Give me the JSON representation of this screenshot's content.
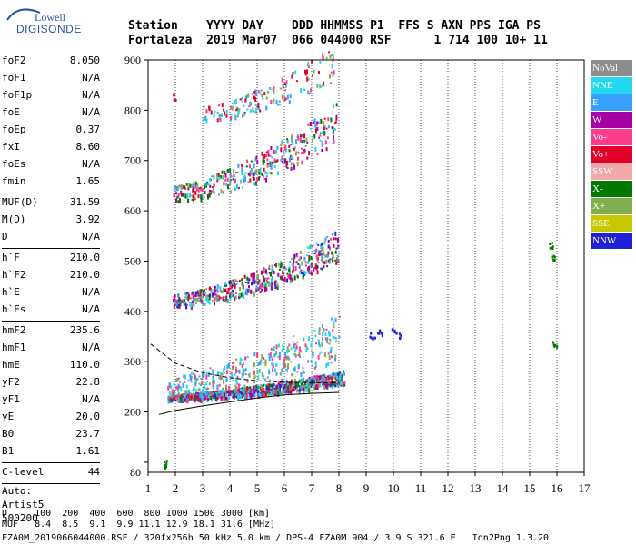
{
  "logo": {
    "line1": "Lowell",
    "line2": "DIGISONDE"
  },
  "header": {
    "row1": "Station    YYYY DAY    DDD HHMMSS P1  FFS S AXN PPS IGA PS",
    "row2": "Fortaleza  2019 Mar07  066 044000 RSF      1 714 100 10+ 11"
  },
  "params": {
    "group1": [
      {
        "k": "foF2",
        "v": "8.050"
      },
      {
        "k": "foF1",
        "v": "N/A"
      },
      {
        "k": "foF1p",
        "v": "N/A"
      },
      {
        "k": "foE",
        "v": "N/A"
      },
      {
        "k": "foEp",
        "v": "0.37"
      },
      {
        "k": "fxI",
        "v": "8.60"
      },
      {
        "k": "foEs",
        "v": "N/A"
      },
      {
        "k": "fmin",
        "v": "1.65"
      }
    ],
    "group2": [
      {
        "k": "MUF(D)",
        "v": "31.59"
      },
      {
        "k": "M(D)",
        "v": "3.92"
      },
      {
        "k": "D",
        "v": "N/A"
      }
    ],
    "group3": [
      {
        "k": "h`F",
        "v": "210.0"
      },
      {
        "k": "h`F2",
        "v": "210.0"
      },
      {
        "k": "h`E",
        "v": "N/A"
      },
      {
        "k": "h`Es",
        "v": "N/A"
      }
    ],
    "group4": [
      {
        "k": "hmF2",
        "v": "235.6"
      },
      {
        "k": "hmF1",
        "v": "N/A"
      },
      {
        "k": "hmE",
        "v": "110.0"
      },
      {
        "k": "yF2",
        "v": "22.8"
      },
      {
        "k": "yF1",
        "v": "N/A"
      },
      {
        "k": "yE",
        "v": "20.0"
      },
      {
        "k": "B0",
        "v": "23.7"
      },
      {
        "k": "B1",
        "v": "1.61"
      }
    ],
    "group5": [
      {
        "k": "C-level",
        "v": "44"
      }
    ],
    "auto": [
      "Auto:",
      "Artist5",
      "500200"
    ]
  },
  "legend": [
    {
      "label": "NoVal",
      "color": "#8c8c8c"
    },
    {
      "label": "NNE",
      "color": "#20d8f0"
    },
    {
      "label": "E",
      "color": "#3aa0ff"
    },
    {
      "label": "W",
      "color": "#a800a8"
    },
    {
      "label": "Vo-",
      "color": "#ff3c8c"
    },
    {
      "label": "Vo+",
      "color": "#e0002a"
    },
    {
      "label": "SSW",
      "color": "#f0a8a8"
    },
    {
      "label": "X-",
      "color": "#007800"
    },
    {
      "label": "X+",
      "color": "#7fb050"
    },
    {
      "label": "SSE",
      "color": "#c8c800"
    },
    {
      "label": "NNW",
      "color": "#2020d8"
    }
  ],
  "footer": {
    "d_row": "D     100  200  400  600  800 1000 1500 3000 [km]",
    "muf_row": "MUF   8.4  8.5  9.1  9.9 11.1 12.9 18.1 31.6 [MHz]",
    "file_row": "FZA0M_2019066044000.RSF / 320fx256h 50 kHz 5.0 km / DPS-4 FZA0M 904 / 3.9 S 321.6 E   Ion2Png 1.3.20"
  },
  "chart_data": {
    "type": "scatter",
    "title": "",
    "xlabel": "",
    "ylabel": "",
    "xlim": [
      1,
      17
    ],
    "ylim": [
      80,
      900
    ],
    "x_ticks": [
      1,
      2,
      3,
      4,
      5,
      6,
      7,
      8,
      9,
      10,
      11,
      12,
      13,
      14,
      15,
      16,
      17
    ],
    "y_ticks": [
      100,
      200,
      300,
      400,
      500,
      600,
      700,
      800,
      900
    ],
    "y_tick_labels": [
      "",
      "200",
      "300",
      "400",
      "500",
      "600",
      "700",
      "800",
      "900"
    ],
    "y_bottom_label": "80",
    "grid": "vertical dotted",
    "legend_placement": "right",
    "traces": [
      {
        "name": "F-trace 1",
        "f_start": 1.7,
        "f_end": 8.2,
        "h_start": 228,
        "h_end": 265,
        "spread": 18,
        "colors": [
          "#e0002a",
          "#ff3c8c",
          "#a800a8",
          "#2020d8",
          "#20d8f0",
          "#3aa0ff",
          "#7fb050",
          "#007800"
        ],
        "density": 900
      },
      {
        "name": "F-trace 1 upper spread",
        "f_start": 1.7,
        "f_end": 8.0,
        "h_start": 245,
        "h_end": 330,
        "spread": 60,
        "colors": [
          "#20d8f0",
          "#3aa0ff",
          "#7fb050",
          "#ff3c8c"
        ],
        "density": 350
      },
      {
        "name": "F-trace 2",
        "f_start": 1.9,
        "f_end": 8.0,
        "h_start": 418,
        "h_end": 520,
        "spread": 40,
        "colors": [
          "#e0002a",
          "#ff3c8c",
          "#a800a8",
          "#20d8f0",
          "#3aa0ff",
          "#7fb050",
          "#007800",
          "#2020d8"
        ],
        "density": 500
      },
      {
        "name": "F-trace 3",
        "f_start": 1.9,
        "f_end": 7.9,
        "h_start": 630,
        "h_end": 760,
        "spread": 50,
        "colors": [
          "#e0002a",
          "#ff3c8c",
          "#a800a8",
          "#20d8f0",
          "#3aa0ff",
          "#7fb050",
          "#007800"
        ],
        "density": 350
      },
      {
        "name": "F-trace 4",
        "f_start": 3.0,
        "f_end": 7.8,
        "h_start": 790,
        "h_end": 880,
        "spread": 45,
        "colors": [
          "#e0002a",
          "#ff3c8c",
          "#20d8f0",
          "#3aa0ff",
          "#7fb050"
        ],
        "density": 150
      }
    ],
    "clusters": [
      {
        "f": 9.2,
        "h": 352,
        "color": "#2020d8"
      },
      {
        "f": 9.5,
        "h": 358,
        "color": "#2020d8"
      },
      {
        "f": 10.0,
        "h": 362,
        "color": "#2020d8"
      },
      {
        "f": 10.2,
        "h": 355,
        "color": "#2020d8"
      },
      {
        "f": 1.6,
        "h": 98,
        "color": "#007800"
      },
      {
        "f": 15.8,
        "h": 533,
        "color": "#007800"
      },
      {
        "f": 15.8,
        "h": 506,
        "color": "#007800"
      },
      {
        "f": 15.9,
        "h": 338,
        "color": "#007800"
      },
      {
        "f": 2.0,
        "h": 828,
        "color": "#e0002a"
      }
    ],
    "profile_solid": [
      [
        1.4,
        195
      ],
      [
        2,
        203
      ],
      [
        3,
        212
      ],
      [
        4,
        220
      ],
      [
        5,
        228
      ],
      [
        6,
        234
      ],
      [
        7,
        237
      ],
      [
        8,
        239
      ]
    ],
    "profile_dashed": [
      [
        1.1,
        335
      ],
      [
        2,
        297
      ],
      [
        3,
        278
      ],
      [
        4,
        268
      ],
      [
        5,
        262
      ],
      [
        6,
        259
      ],
      [
        7,
        258
      ],
      [
        8,
        258
      ]
    ]
  }
}
